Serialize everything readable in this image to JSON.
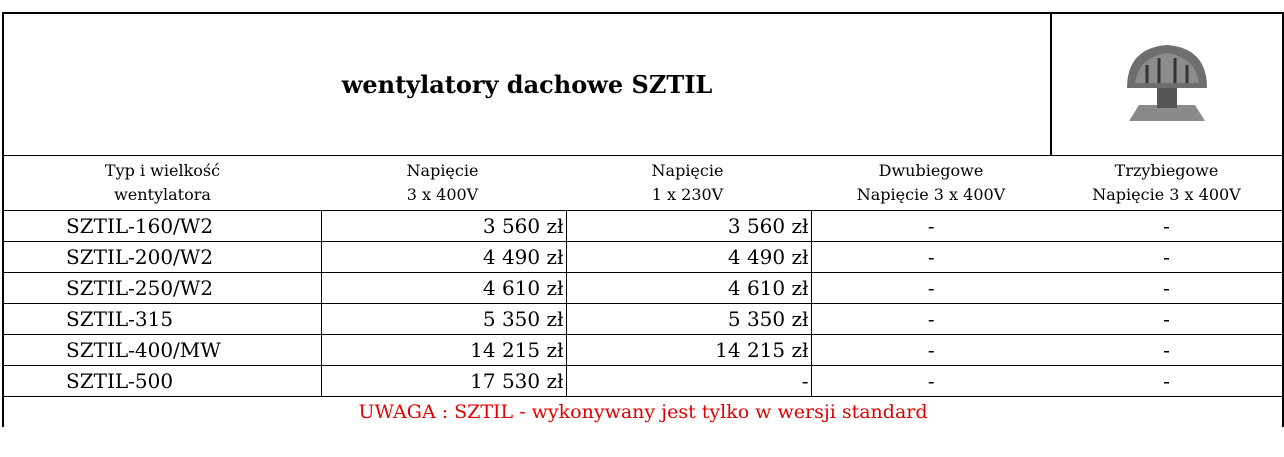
{
  "title": "wentylatory dachowe SZTIL",
  "table": {
    "headers": [
      [
        "Typ i wielkość",
        "wentylatora"
      ],
      [
        "Napięcie",
        "3 x 400V"
      ],
      [
        "Napięcie",
        "1 x 230V"
      ],
      [
        "Dwubiegowe",
        "Napięcie 3 x 400V"
      ],
      [
        "Trzybiegowe",
        "Napięcie 3 x 400V"
      ]
    ],
    "rows": [
      [
        "SZTIL-160/W2",
        "3 560 zł",
        "3 560 zł",
        "-",
        "-"
      ],
      [
        "SZTIL-200/W2",
        "4 490 zł",
        "4 490 zł",
        "-",
        "-"
      ],
      [
        "SZTIL-250/W2",
        "4 610 zł",
        "4 610 zł",
        "-",
        "-"
      ],
      [
        "SZTIL-315",
        "5 350 zł",
        "5 350 zł",
        "-",
        "-"
      ],
      [
        "SZTIL-400/MW",
        "14 215 zł",
        "14 215 zł",
        "-",
        "-"
      ],
      [
        "SZTIL-500",
        "17 530 zł",
        "-",
        "-",
        "-"
      ]
    ]
  },
  "note": "UWAGA : SZTIL - wykonywany jest tylko w wersji standard"
}
